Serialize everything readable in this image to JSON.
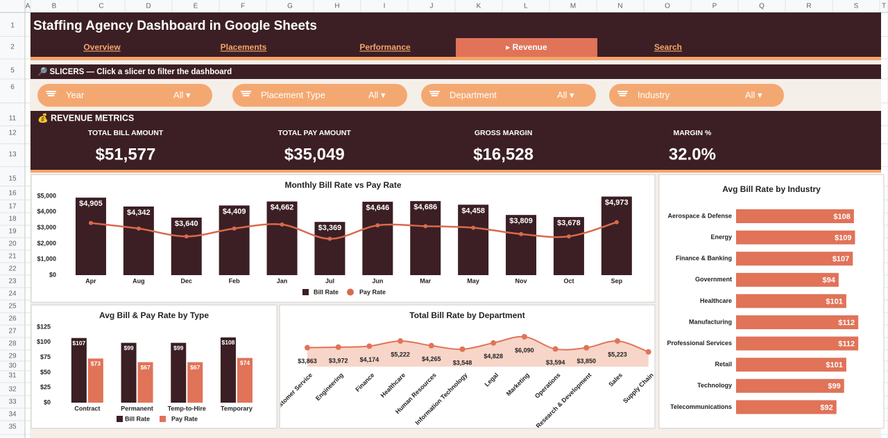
{
  "sheet": {
    "columns": [
      "A",
      "B",
      "C",
      "D",
      "E",
      "F",
      "G",
      "H",
      "I",
      "J",
      "K",
      "L",
      "M",
      "N",
      "O",
      "P",
      "Q",
      "R",
      "S",
      "T"
    ],
    "rows": [
      1,
      2,
      5,
      6,
      11,
      12,
      13,
      15,
      16,
      17,
      18,
      19,
      20,
      21,
      22,
      23,
      24,
      25,
      26,
      27,
      28,
      29,
      30,
      31,
      32,
      33,
      34,
      35
    ]
  },
  "header": {
    "title": "Staffing Agency Dashboard in Google Sheets",
    "tabs": [
      "Overview",
      "Placements",
      "Performance",
      "▸ Revenue",
      "Search"
    ],
    "active_tab": 3
  },
  "slicers": {
    "title": "🔎 SLICERS — Click a slicer to filter the dashboard",
    "items": [
      {
        "label": "Year",
        "value": "All ▾"
      },
      {
        "label": "Placement Type",
        "value": "All ▾"
      },
      {
        "label": "Department",
        "value": "All ▾"
      },
      {
        "label": "Industry",
        "value": "All ▾"
      }
    ]
  },
  "metrics": {
    "title": "💰 REVENUE METRICS",
    "items": [
      {
        "label": "TOTAL BILL AMOUNT",
        "value": "$51,577"
      },
      {
        "label": "TOTAL PAY AMOUNT",
        "value": "$35,049"
      },
      {
        "label": "GROSS MARGIN",
        "value": "$16,528"
      },
      {
        "label": "MARGIN %",
        "value": "32.0%"
      }
    ]
  },
  "chart_data": [
    {
      "type": "bar_line",
      "title": "Monthly Bill Rate vs Pay Rate",
      "categories": [
        "Apr",
        "Aug",
        "Dec",
        "Feb",
        "Jan",
        "Jul",
        "Jun",
        "Mar",
        "May",
        "Nov",
        "Oct",
        "Sep"
      ],
      "series": [
        {
          "name": "Bill Rate",
          "color": "#3b1f24",
          "values": [
            4905,
            4342,
            3640,
            4409,
            4662,
            3369,
            4646,
            4686,
            4458,
            3809,
            3678,
            4973
          ],
          "value_labels": [
            "$4,905",
            "$4,342",
            "$3,640",
            "$4,409",
            "$4,662",
            "$3,369",
            "$4,646",
            "$4,686",
            "$4,458",
            "$3,809",
            "$3,678",
            "$4,973"
          ]
        },
        {
          "name": "Pay Rate",
          "color": "#d9694d",
          "values": [
            3300,
            2950,
            2450,
            2950,
            3200,
            2300,
            3150,
            3100,
            3000,
            2600,
            2450,
            3350
          ]
        }
      ],
      "ylim": [
        0,
        5000
      ],
      "yticks": [
        {
          "value": 0,
          "label": "$0"
        },
        {
          "value": 1000,
          "label": "$1,000"
        },
        {
          "value": 2000,
          "label": "$2,000"
        },
        {
          "value": 3000,
          "label": "$3,000"
        },
        {
          "value": 4000,
          "label": "$4,000"
        },
        {
          "value": 5000,
          "label": "$5,000"
        }
      ]
    },
    {
      "type": "bar",
      "title": "Avg Bill & Pay Rate by Type",
      "categories": [
        "Contract",
        "Permanent",
        "Temp-to-Hire",
        "Temporary"
      ],
      "series": [
        {
          "name": "Bill Rate",
          "color": "#3b1f24",
          "values": [
            107,
            99,
            99,
            108
          ],
          "value_labels": [
            "$107",
            "$99",
            "$99",
            "$108"
          ]
        },
        {
          "name": "Pay Rate",
          "color": "#e07358",
          "values": [
            73,
            67,
            67,
            74
          ],
          "value_labels": [
            "$73",
            "$67",
            "$67",
            "$74"
          ]
        }
      ],
      "ylim": [
        0,
        125
      ],
      "yticks": [
        {
          "value": 0,
          "label": "$0"
        },
        {
          "value": 25,
          "label": "$25"
        },
        {
          "value": 50,
          "label": "$50"
        },
        {
          "value": 75,
          "label": "$75"
        },
        {
          "value": 100,
          "label": "$100"
        },
        {
          "value": 125,
          "label": "$125"
        }
      ]
    },
    {
      "type": "area",
      "title": "Total Bill Rate by Department",
      "categories": [
        "Customer Service",
        "Engineering",
        "Finance",
        "Healthcare",
        "Human Resources",
        "Information Technology",
        "Legal",
        "Marketing",
        "Operations",
        "Research & Development",
        "Sales",
        "Supply Chain"
      ],
      "color": "#e07358",
      "fill": "#f7d5c8",
      "values": [
        3863,
        3972,
        4174,
        5222,
        4265,
        3548,
        4828,
        6090,
        3594,
        3850,
        5223,
        3000
      ],
      "value_labels": [
        "$3,863",
        "$3,972",
        "$4,174",
        "$5,222",
        "$4,265",
        "$3,548",
        "$4,828",
        "$6,090",
        "$3,594",
        "$3,850",
        "$5,223",
        null
      ]
    },
    {
      "type": "barh",
      "title": "Avg Bill Rate by Industry",
      "categories": [
        "Aerospace & Defense",
        "Energy",
        "Finance & Banking",
        "Government",
        "Healthcare",
        "Manufacturing",
        "Professional Services",
        "Retail",
        "Technology",
        "Telecommunications"
      ],
      "color": "#e07358",
      "values": [
        108,
        109,
        107,
        94,
        101,
        112,
        112,
        101,
        99,
        92
      ],
      "value_labels": [
        "$108",
        "$109",
        "$107",
        "$94",
        "$101",
        "$112",
        "$112",
        "$101",
        "$99",
        "$92"
      ]
    }
  ]
}
